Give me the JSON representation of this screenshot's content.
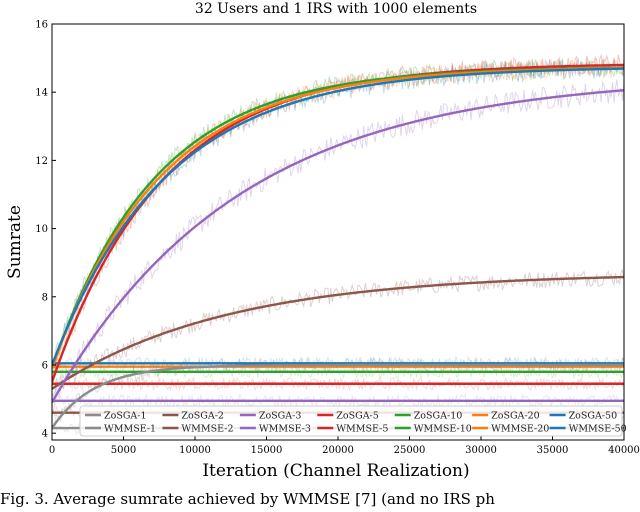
{
  "caption": "Fig. 3.   Average sumrate achieved by WMMSE [7] (and no IRS ph",
  "chart_data": {
    "type": "line",
    "title": "32 Users and 1 IRS with 1000 elements",
    "xlabel": "Iteration (Channel Realization)",
    "ylabel": "Sumrate",
    "xlim": [
      0,
      40000
    ],
    "ylim": [
      3.8,
      16
    ],
    "xticks": [
      0,
      5000,
      10000,
      15000,
      20000,
      25000,
      30000,
      35000,
      40000
    ],
    "yticks": [
      4,
      6,
      8,
      10,
      12,
      14,
      16
    ],
    "grid": false,
    "legend_position": "bottom",
    "series": [
      {
        "name": "ZoSGA-1",
        "kind": "zosga",
        "color": "#8c8c8c",
        "start": 4.15,
        "end": 6.0,
        "tau": 3000,
        "noise": 0.22
      },
      {
        "name": "ZoSGA-2",
        "kind": "zosga",
        "color": "#8c564b",
        "start": 5.3,
        "end": 8.7,
        "tau": 12000,
        "noise": 0.25
      },
      {
        "name": "ZoSGA-3",
        "kind": "zosga",
        "color": "#9467bd",
        "start": 4.9,
        "end": 14.5,
        "tau": 13000,
        "noise": 0.35
      },
      {
        "name": "ZoSGA-5",
        "kind": "zosga",
        "color": "#d62728",
        "start": 5.5,
        "end": 14.85,
        "tau": 7700,
        "noise": 0.3
      },
      {
        "name": "ZoSGA-10",
        "kind": "zosga",
        "color": "#2ca02c",
        "start": 5.9,
        "end": 14.75,
        "tau": 7200,
        "noise": 0.3
      },
      {
        "name": "ZoSGA-20",
        "kind": "zosga",
        "color": "#ff7f0e",
        "start": 5.9,
        "end": 14.75,
        "tau": 7500,
        "noise": 0.3
      },
      {
        "name": "ZoSGA-50",
        "kind": "zosga",
        "color": "#1f77b4",
        "start": 6.0,
        "end": 14.75,
        "tau": 8000,
        "noise": 0.3
      },
      {
        "name": "WMMSE-1",
        "kind": "wmmse",
        "color": "#8c8c8c",
        "value": 4.15
      },
      {
        "name": "WMMSE-2",
        "kind": "wmmse",
        "color": "#8c564b",
        "value": 4.6
      },
      {
        "name": "WMMSE-3",
        "kind": "wmmse",
        "color": "#9467bd",
        "value": 4.95
      },
      {
        "name": "WMMSE-5",
        "kind": "wmmse",
        "color": "#d62728",
        "value": 5.45
      },
      {
        "name": "WMMSE-10",
        "kind": "wmmse",
        "color": "#2ca02c",
        "value": 5.8
      },
      {
        "name": "WMMSE-20",
        "kind": "wmmse",
        "color": "#ff7f0e",
        "value": 5.95
      },
      {
        "name": "WMMSE-50",
        "kind": "wmmse",
        "color": "#1f77b4",
        "value": 6.05
      }
    ]
  }
}
